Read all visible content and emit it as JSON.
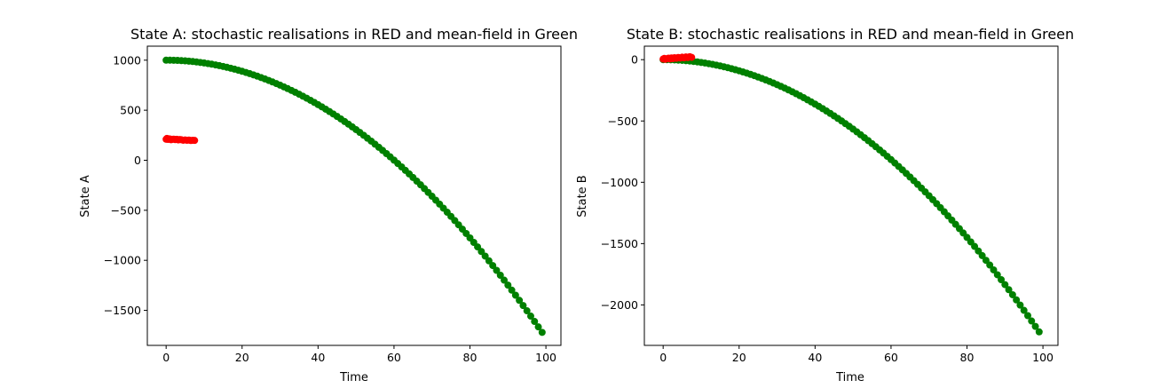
{
  "chart_data": [
    {
      "type": "scatter",
      "title": "State A: stochastic realisations in RED and mean-field in Green",
      "xlabel": "Time",
      "ylabel": "State A",
      "xlim": [
        -4.95,
        103.95
      ],
      "ylim": [
        -1850,
        1140
      ],
      "xticks": [
        0,
        20,
        40,
        60,
        80,
        100
      ],
      "yticks": [
        1000,
        500,
        0,
        -500,
        -1000,
        -1500
      ],
      "xtick_labels": [
        "0",
        "20",
        "40",
        "60",
        "80",
        "100"
      ],
      "ytick_labels": [
        "1000",
        "500",
        "0",
        "−500",
        "−1000",
        "−1500"
      ],
      "grid": false,
      "series": [
        {
          "color": "#008000",
          "kind": "mean-field",
          "fit": {
            "a": 1000,
            "b": 0,
            "c": -0.2775
          },
          "x_range": [
            0,
            99
          ],
          "x_step": 1
        },
        {
          "color": "#ff0000",
          "kind": "stochastic",
          "points": [
            [
              0,
              210
            ],
            [
              0.2,
              218
            ],
            [
              0.5,
              208
            ],
            [
              0.8,
              214
            ],
            [
              1,
              212
            ],
            [
              1.3,
              205
            ],
            [
              1.6,
              209
            ],
            [
              2,
              211
            ],
            [
              2.4,
              206
            ],
            [
              2.8,
              210
            ],
            [
              3.2,
              203
            ],
            [
              3.6,
              207
            ],
            [
              4,
              205
            ],
            [
              4.5,
              200
            ],
            [
              5,
              203
            ],
            [
              5.5,
              199
            ],
            [
              6,
              202
            ],
            [
              6.5,
              197
            ],
            [
              7,
              200
            ],
            [
              7.5,
              198
            ]
          ]
        }
      ]
    },
    {
      "type": "scatter",
      "title": "State B: stochastic realisations in RED and mean-field in Green",
      "xlabel": "Time",
      "ylabel": "State B",
      "xlim": [
        -4.95,
        103.95
      ],
      "ylim": [
        -2330,
        110
      ],
      "xticks": [
        0,
        20,
        40,
        60,
        80,
        100
      ],
      "yticks": [
        0,
        -500,
        -1000,
        -1500,
        -2000
      ],
      "xtick_labels": [
        "0",
        "20",
        "40",
        "60",
        "80",
        "100"
      ],
      "ytick_labels": [
        "0",
        "−500",
        "−1000",
        "−1500",
        "−2000"
      ],
      "grid": false,
      "series": [
        {
          "color": "#008000",
          "kind": "mean-field",
          "fit": {
            "a": 0,
            "b": 0,
            "c": -0.2265
          },
          "x_range": [
            0,
            99
          ],
          "x_step": 1
        },
        {
          "color": "#ff0000",
          "kind": "stochastic",
          "points": [
            [
              0,
              5
            ],
            [
              0.3,
              10
            ],
            [
              0.6,
              3
            ],
            [
              1,
              8
            ],
            [
              1.4,
              12
            ],
            [
              1.8,
              6
            ],
            [
              2.2,
              14
            ],
            [
              2.6,
              9
            ],
            [
              3,
              16
            ],
            [
              3.5,
              11
            ],
            [
              4,
              18
            ],
            [
              4.5,
              13
            ],
            [
              5,
              20
            ],
            [
              5.5,
              15
            ],
            [
              6,
              22
            ],
            [
              6.5,
              17
            ],
            [
              7,
              24
            ],
            [
              7.5,
              19
            ]
          ]
        }
      ]
    }
  ]
}
